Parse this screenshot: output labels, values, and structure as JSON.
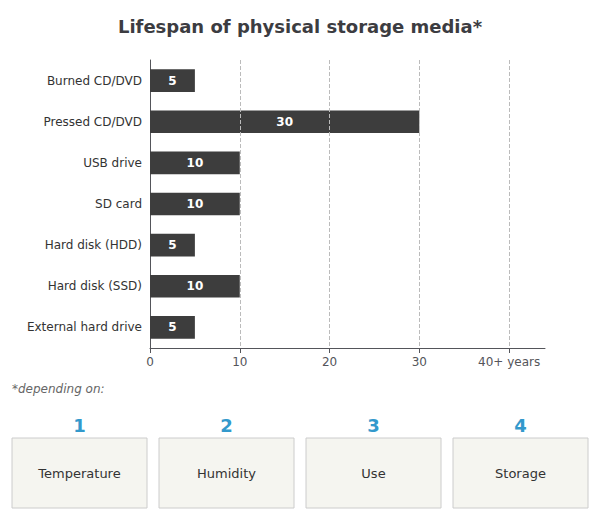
{
  "chart_data": {
    "type": "bar",
    "orientation": "horizontal",
    "title": "Lifespan of physical storage media*",
    "categories": [
      "Burned CD/DVD",
      "Pressed CD/DVD",
      "USB drive",
      "SD card",
      "Hard disk (HDD)",
      "Hard disk (SSD)",
      "External hard drive"
    ],
    "values": [
      5,
      30,
      10,
      10,
      5,
      10,
      5
    ],
    "color": "#3D3D3D",
    "data_labels": true,
    "xlim": [
      0,
      44
    ],
    "xticks": [
      0,
      10,
      20,
      30,
      {
        "value": 40,
        "label": "40+ years"
      }
    ],
    "grid": true,
    "annotations": [
      "*depending on:",
      "1",
      "Temperature",
      "2",
      "Humidity",
      "3",
      "Use",
      "4",
      "Storage"
    ]
  }
}
